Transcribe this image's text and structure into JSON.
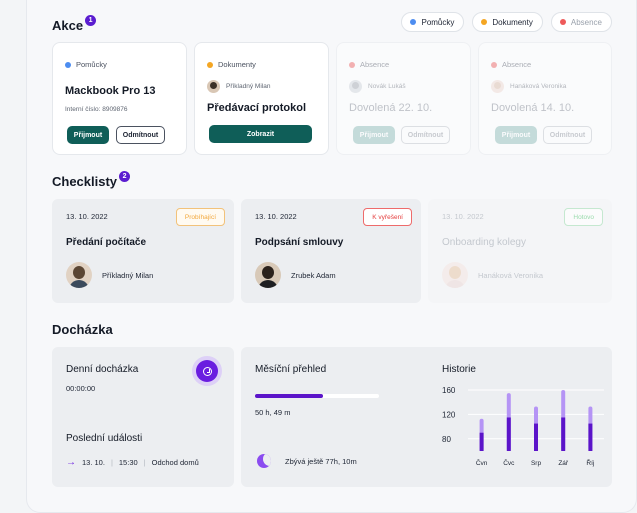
{
  "akce": {
    "title": "Akce",
    "badge": "1",
    "filters": [
      {
        "label": "Pomůcky",
        "color": "#4d8df0",
        "active": true
      },
      {
        "label": "Dokumenty",
        "color": "#f4a623",
        "active": true
      },
      {
        "label": "Absence",
        "color": "#ee5a5a",
        "active": false
      }
    ],
    "cards": [
      {
        "tag": "Pomůcky",
        "tag_color": "#4d8df0",
        "title": "Mackbook Pro 13",
        "subtitle": "Interní číslo: 8909876",
        "accept": "Přijmout",
        "reject": "Odmítnout"
      },
      {
        "tag": "Dokumenty",
        "tag_color": "#f4a623",
        "person": "Příkladný Milan",
        "title": "Předávací protokol",
        "show": "Zobrazit"
      },
      {
        "tag": "Absence",
        "tag_color": "#ee5a5a",
        "person": "Novák Lukáš",
        "title": "Dovolená 22. 10.",
        "accept": "Přijmout",
        "reject": "Odmítnout"
      },
      {
        "tag": "Absence",
        "tag_color": "#ee5a5a",
        "person": "Hanáková Veronika",
        "title": "Dovolená 14. 10.",
        "accept": "Přijmout",
        "reject": "Odmítnout"
      }
    ]
  },
  "checklisty": {
    "title": "Checklisty",
    "badge": "2",
    "items": [
      {
        "date": "13. 10. 2022",
        "status": "Probíhající",
        "status_color": "#f2a73b",
        "title": "Předání počítače",
        "person": "Příkladný Milan"
      },
      {
        "date": "13. 10. 2022",
        "status": "K vyřešení",
        "status_color": "#ee4d4d",
        "title": "Podpsání smlouvy",
        "person": "Zrubek Adam"
      },
      {
        "date": "13. 10. 2022",
        "status": "Hotovo",
        "status_color": "#4cc36b",
        "title": "Onboarding kolegy",
        "person": "Hanáková Veronika"
      }
    ]
  },
  "dochazka": {
    "title": "Docházka",
    "daily": {
      "label": "Denní docházka",
      "time": "00:00:00"
    },
    "last_events": {
      "label": "Poslední události",
      "date": "13. 10.",
      "time": "15:30",
      "event": "Odchod domů"
    },
    "monthly": {
      "label": "Měsíční přehled",
      "worked": "50 h, 49 m",
      "progress": 0.55,
      "remaining": "Zbývá ještě 77h, 10m"
    },
    "history": {
      "label": "Historie"
    }
  },
  "chart_data": {
    "type": "bar",
    "title": "Historie",
    "categories": [
      "Čvn",
      "Čvc",
      "Srp",
      "Zář",
      "Říj"
    ],
    "series": [
      {
        "values": [
          113,
          155,
          133,
          160,
          133
        ]
      },
      {
        "values": [
          90,
          115,
          105,
          115,
          105
        ]
      }
    ],
    "yticks": [
      80,
      120,
      160
    ],
    "ylim": [
      60,
      165
    ],
    "colors": [
      "#b594f5",
      "#5b14c9"
    ],
    "grid": true
  }
}
